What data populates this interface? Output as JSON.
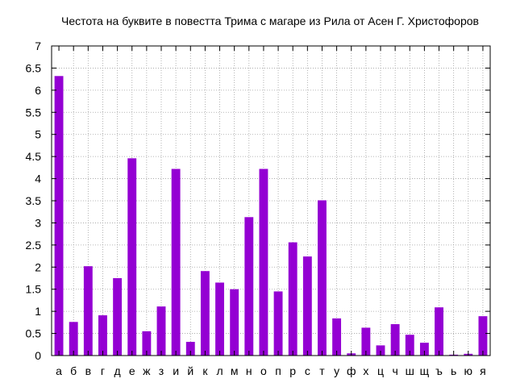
{
  "chart_data": {
    "type": "bar",
    "title": "Честота на буквите в повестта Трима с магаре из Рила от Асен Г. Христофоров",
    "xlabel": "",
    "ylabel": "",
    "ylim": [
      0,
      7
    ],
    "yticks": [
      "0",
      "0.5",
      "1",
      "1.5",
      "2",
      "2.5",
      "3",
      "3.5",
      "4",
      "4.5",
      "5",
      "5.5",
      "6",
      "6.5",
      "7"
    ],
    "grid": true,
    "bar_color": "#9400d3",
    "categories": [
      "а",
      "б",
      "в",
      "г",
      "д",
      "е",
      "ж",
      "з",
      "и",
      "й",
      "к",
      "л",
      "м",
      "н",
      "о",
      "п",
      "р",
      "с",
      "т",
      "у",
      "ф",
      "х",
      "ц",
      "ч",
      "ш",
      "щ",
      "ъ",
      "ь",
      "ю",
      "я"
    ],
    "values": [
      6.32,
      0.76,
      2.02,
      0.91,
      1.75,
      4.46,
      0.55,
      1.11,
      4.22,
      0.31,
      1.91,
      1.65,
      1.5,
      3.13,
      4.22,
      1.45,
      2.56,
      2.24,
      3.51,
      0.84,
      0.05,
      0.63,
      0.23,
      0.71,
      0.47,
      0.29,
      1.09,
      0.02,
      0.04,
      0.89
    ]
  }
}
